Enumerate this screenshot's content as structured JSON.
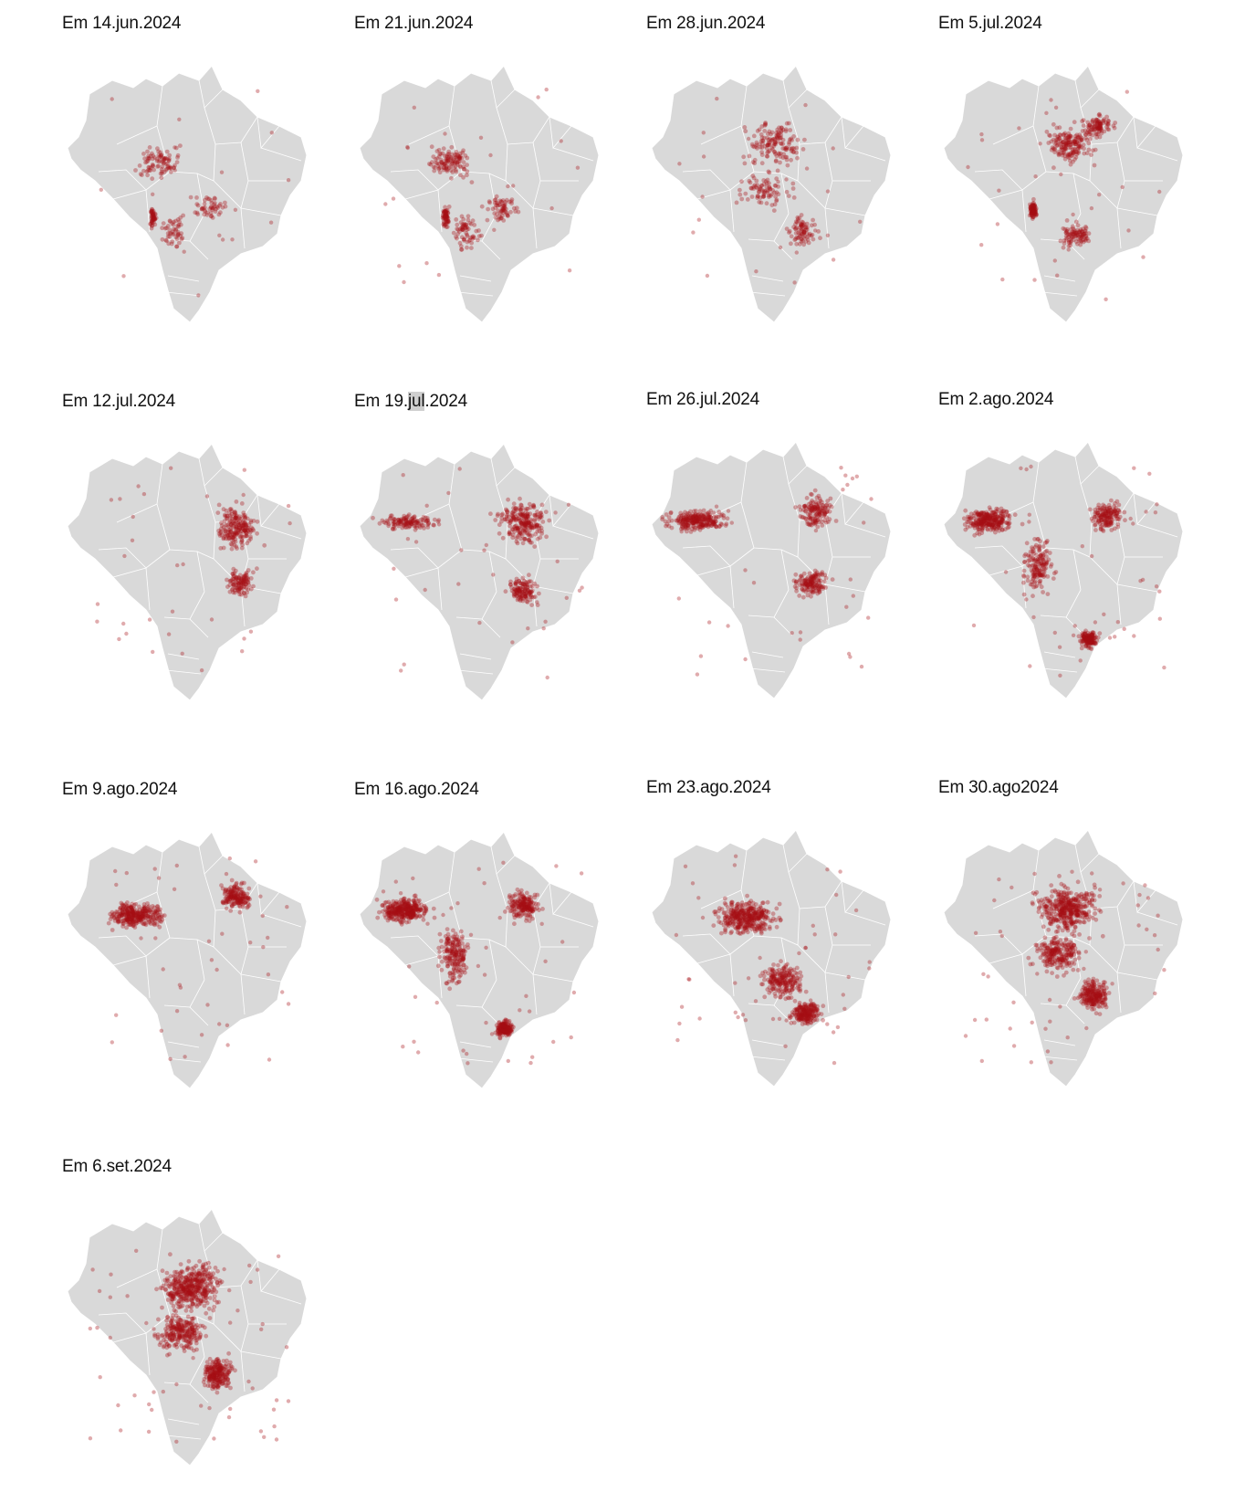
{
  "colors": {
    "land": "#d9d9d9",
    "state_border": "#ffffff",
    "fire_dot": "#a50f15",
    "text": "#111111",
    "highlight": "#cfcfcf"
  },
  "fire_dot_opacity": 0.35,
  "panels": [
    {
      "title": "Em 14.jun.2024",
      "hotspot": "center-south"
    },
    {
      "title": "Em 21.jun.2024",
      "hotspot": "center-south"
    },
    {
      "title": "Em 28.jun.2024",
      "hotspot": "center"
    },
    {
      "title": "Em 5.jul.2024",
      "hotspot": "center-east"
    },
    {
      "title": "Em 12.jul.2024",
      "hotspot": "northeast"
    },
    {
      "title": "Em 19.jul.2024",
      "hotspot": "north-northeast",
      "highlight": "jul"
    },
    {
      "title": "Em 26.jul.2024",
      "hotspot": "west-northeast"
    },
    {
      "title": "Em 2.ago.2024",
      "hotspot": "west-southwest"
    },
    {
      "title": "Em 9.ago.2024",
      "hotspot": "northwest"
    },
    {
      "title": "Em 16.ago.2024",
      "hotspot": "west-southwest"
    },
    {
      "title": "Em 23.ago.2024",
      "hotspot": "center-west"
    },
    {
      "title": "Em 30.ago2024",
      "hotspot": "center"
    },
    {
      "title": "Em 6.set.2024",
      "hotspot": "center"
    }
  ]
}
